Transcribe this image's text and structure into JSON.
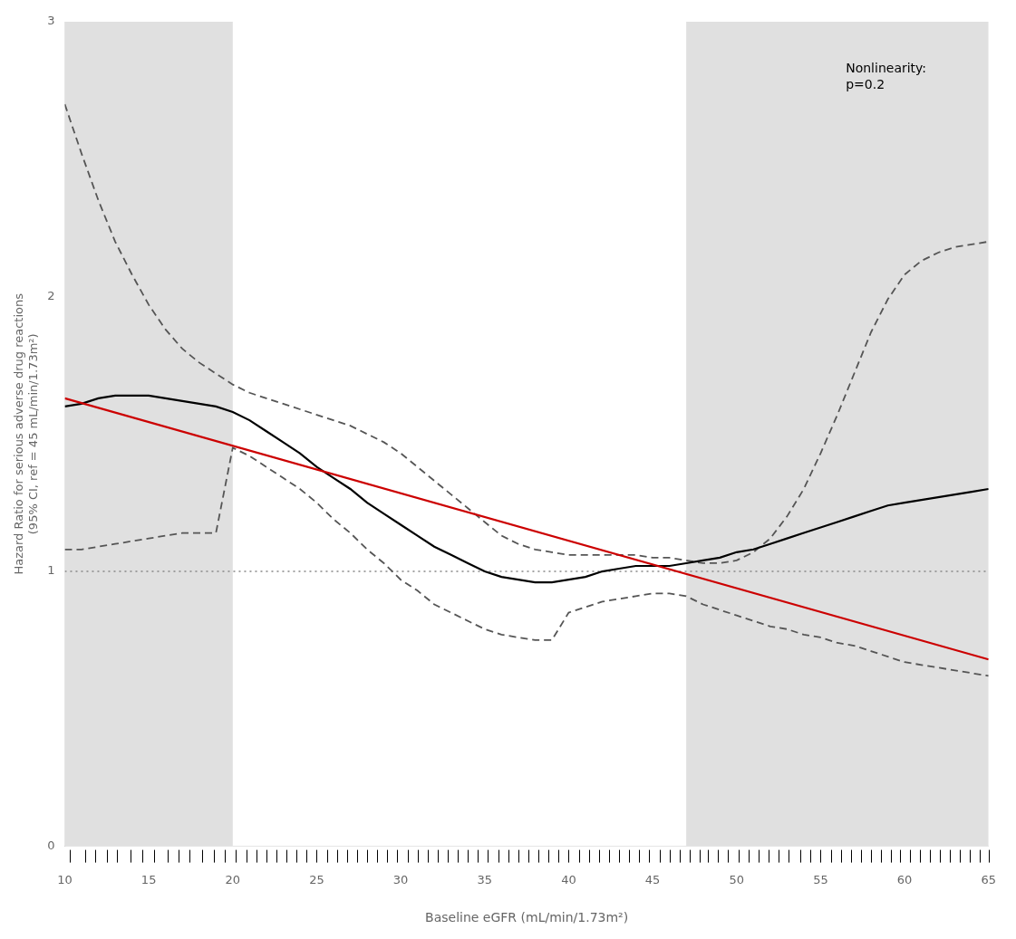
{
  "chart_data": {
    "type": "line",
    "xlabel": "Baseline eGFR (mL/min/1.73m²)",
    "ylabel": "Hazard Ratio for serious adverse drug reactions\n(95% CI, ref = 45 mL/min/1.73m²)",
    "xlim": [
      10,
      65
    ],
    "ylim": [
      0,
      3
    ],
    "xticks": [
      10,
      15,
      20,
      25,
      30,
      35,
      40,
      45,
      50,
      55,
      60,
      65
    ],
    "yticks": [
      0,
      1,
      2,
      3
    ],
    "grid": false,
    "bands": [
      {
        "from": 10,
        "to": 20,
        "color": "#e0e0e0"
      },
      {
        "from": 47,
        "to": 65,
        "color": "#e0e0e0"
      }
    ],
    "ref_lines": [
      {
        "y": 1.0,
        "color": "#888888",
        "line_style": "dotted"
      }
    ],
    "series": [
      {
        "color": "#555555",
        "line_style": "dashed",
        "x": [
          10,
          11,
          12,
          13,
          14,
          15,
          16,
          17,
          18,
          19,
          20,
          21,
          22,
          23,
          24,
          25,
          26,
          27,
          28,
          29,
          30,
          31,
          32,
          33,
          34,
          35,
          36,
          37,
          38,
          39,
          40,
          41,
          42,
          43,
          44,
          45,
          46,
          47,
          48,
          49,
          50,
          51,
          52,
          53,
          54,
          55,
          56,
          57,
          58,
          59,
          60,
          61,
          62,
          63,
          64,
          65
        ],
        "values": [
          2.7,
          2.52,
          2.35,
          2.2,
          2.08,
          1.97,
          1.88,
          1.81,
          1.76,
          1.72,
          1.68,
          1.65,
          1.63,
          1.61,
          1.59,
          1.57,
          1.55,
          1.53,
          1.5,
          1.47,
          1.43,
          1.38,
          1.33,
          1.28,
          1.23,
          1.18,
          1.13,
          1.1,
          1.08,
          1.07,
          1.06,
          1.06,
          1.06,
          1.06,
          1.06,
          1.05,
          1.05,
          1.04,
          1.03,
          1.03,
          1.04,
          1.07,
          1.12,
          1.2,
          1.3,
          1.43,
          1.57,
          1.72,
          1.87,
          1.99,
          2.08,
          2.13,
          2.16,
          2.18,
          2.19,
          2.2
        ]
      },
      {
        "color": "#555555",
        "line_style": "dashed",
        "x": [
          10,
          11,
          12,
          13,
          14,
          15,
          16,
          17,
          18,
          19,
          20,
          21,
          22,
          23,
          24,
          25,
          26,
          27,
          28,
          29,
          30,
          31,
          32,
          33,
          34,
          35,
          36,
          37,
          38,
          39,
          40,
          41,
          42,
          43,
          44,
          45,
          46,
          47,
          48,
          49,
          50,
          51,
          52,
          53,
          54,
          55,
          56,
          57,
          58,
          59,
          60,
          61,
          62,
          63,
          64,
          65
        ],
        "values": [
          1.08,
          1.08,
          1.09,
          1.1,
          1.11,
          1.12,
          1.13,
          1.14,
          1.14,
          1.14,
          1.45,
          1.42,
          1.38,
          1.34,
          1.3,
          1.25,
          1.19,
          1.14,
          1.08,
          1.03,
          0.97,
          0.93,
          0.88,
          0.85,
          0.82,
          0.79,
          0.77,
          0.76,
          0.75,
          0.75,
          0.85,
          0.87,
          0.89,
          0.9,
          0.91,
          0.92,
          0.92,
          0.91,
          0.88,
          0.86,
          0.84,
          0.82,
          0.8,
          0.79,
          0.77,
          0.76,
          0.74,
          0.73,
          0.71,
          0.69,
          0.67,
          0.66,
          0.65,
          0.64,
          0.63,
          0.62
        ]
      },
      {
        "color": "#000000",
        "line_style": "solid",
        "x": [
          10,
          11,
          12,
          13,
          14,
          15,
          16,
          17,
          18,
          19,
          20,
          21,
          22,
          23,
          24,
          25,
          26,
          27,
          28,
          29,
          30,
          31,
          32,
          33,
          34,
          35,
          36,
          37,
          38,
          39,
          40,
          41,
          42,
          43,
          44,
          45,
          46,
          47,
          48,
          49,
          50,
          51,
          52,
          53,
          54,
          55,
          56,
          57,
          58,
          59,
          60,
          61,
          62,
          63,
          64,
          65
        ],
        "values": [
          1.6,
          1.61,
          1.63,
          1.64,
          1.64,
          1.64,
          1.63,
          1.62,
          1.61,
          1.6,
          1.58,
          1.55,
          1.51,
          1.47,
          1.43,
          1.38,
          1.34,
          1.3,
          1.25,
          1.21,
          1.17,
          1.13,
          1.09,
          1.06,
          1.03,
          1.0,
          0.98,
          0.97,
          0.96,
          0.96,
          0.97,
          0.98,
          1.0,
          1.01,
          1.02,
          1.02,
          1.02,
          1.03,
          1.04,
          1.05,
          1.07,
          1.08,
          1.1,
          1.12,
          1.14,
          1.16,
          1.18,
          1.2,
          1.22,
          1.24,
          1.25,
          1.26,
          1.27,
          1.28,
          1.29,
          1.3
        ]
      },
      {
        "color": "#cc0000",
        "line_style": "solid",
        "x": [
          10,
          65
        ],
        "values": [
          1.63,
          0.68
        ]
      }
    ],
    "rug": {
      "color": "#000000",
      "positions": [
        20.2,
        20.8,
        21.4,
        22.0,
        22.6,
        23.2,
        23.8,
        24.4,
        25.0,
        25.6,
        26.2,
        26.8,
        27.4,
        28.0,
        28.6,
        29.2,
        29.8,
        30.4,
        31.0,
        31.6,
        32.2,
        32.8,
        33.4,
        34.0,
        34.6,
        35.2,
        35.8,
        36.4,
        37.0,
        37.6,
        38.2,
        38.8,
        39.4,
        40.0,
        40.6,
        41.2,
        41.8,
        42.4,
        43.0,
        43.6,
        44.2,
        44.8,
        45.4,
        46.0,
        46.6,
        10.3,
        11.2,
        11.8,
        12.5,
        13.1,
        13.9,
        14.6,
        15.3,
        16.1,
        16.8,
        17.4,
        18.2,
        18.9,
        19.5,
        47.2,
        47.8,
        48.3,
        48.9,
        49.5,
        50.1,
        50.7,
        51.3,
        51.9,
        52.5,
        53.1,
        53.8,
        54.4,
        55.0,
        55.6,
        56.2,
        56.8,
        57.4,
        58.0,
        58.6,
        59.2,
        59.7,
        60.3,
        60.9,
        61.5,
        62.1,
        62.7,
        63.3,
        63.9,
        64.5,
        65.0
      ]
    },
    "annotations": [
      {
        "text": "Nonlinearity:\np=0.2",
        "x": 56.5,
        "y": 2.85
      }
    ]
  }
}
